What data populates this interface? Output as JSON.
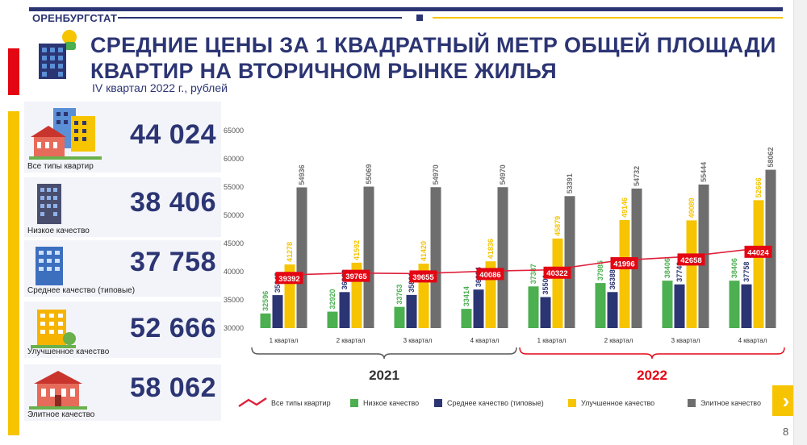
{
  "header": {
    "agency": "ОРЕНБУРГСТАТ",
    "title_line1": "СРЕДНИЕ ЦЕНЫ ЗА 1 КВАДРАТНЫЙ МЕТР ОБЩЕЙ ПЛОЩАДИ",
    "title_line2": "КВАРТИР НА ВТОРИЧНОМ РЫНКЕ ЖИЛЬЯ",
    "subtitle": "IV квартал 2022 г., рублей"
  },
  "summary": [
    {
      "value": "44 024",
      "label": "Все типы квартир",
      "icon": "mixed-buildings-icon"
    },
    {
      "value": "38 406",
      "label": "Низкое качество",
      "icon": "apartment-block-icon"
    },
    {
      "value": "37 758",
      "label": "Среднее качество (типовые)",
      "icon": "blue-apartment-icon"
    },
    {
      "value": "52 666",
      "label": "Улучшенное качество",
      "icon": "yellow-apartment-icon"
    },
    {
      "value": "58 062",
      "label": "Элитное качество",
      "icon": "elite-house-icon"
    }
  ],
  "colors": {
    "low": "#4caf50",
    "mid": "#2c3573",
    "improved": "#f6c400",
    "elite": "#6e6e6e",
    "all": "#e0213c",
    "accent_red": "#e30613",
    "accent_yellow": "#f6c400",
    "navy": "#2c3573"
  },
  "chart_data": {
    "type": "bar",
    "categories": [
      "1 квартал",
      "2 квартал",
      "3 квартал",
      "4 квартал",
      "1 квартал",
      "2 квартал",
      "3 квартал",
      "4 квартал"
    ],
    "groups": [
      {
        "label": "2021",
        "from": 0,
        "to": 3
      },
      {
        "label": "2022",
        "from": 4,
        "to": 7
      }
    ],
    "ylim": [
      30000,
      65000
    ],
    "yticks": [
      30000,
      35000,
      40000,
      45000,
      50000,
      55000,
      60000,
      65000
    ],
    "series": [
      {
        "name": "Низкое качество",
        "key": "low",
        "values": [
          32596,
          32920,
          33763,
          33414,
          37387,
          37985,
          38406,
          38406
        ]
      },
      {
        "name": "Среднее качество (типовые)",
        "key": "mid",
        "values": [
          35845,
          36382,
          35880,
          36834,
          35501,
          36388,
          37748,
          37758
        ]
      },
      {
        "name": "Улучшенное качество",
        "key": "improved",
        "values": [
          41278,
          41592,
          41420,
          41836,
          45879,
          49146,
          49089,
          52666
        ]
      },
      {
        "name": "Элитное качество",
        "key": "elite",
        "values": [
          54936,
          55069,
          54970,
          54970,
          53391,
          54732,
          55444,
          58062
        ]
      }
    ],
    "line": {
      "name": "Все типы квартир",
      "key": "all",
      "values": [
        39392,
        39765,
        39655,
        40086,
        40322,
        41996,
        42658,
        44024
      ]
    },
    "legend": [
      "Все типы квартир",
      "Низкое качество",
      "Среднее качество (типовые)",
      "Улучшенное качество",
      "Элитное качество"
    ],
    "legend_position": "bottom"
  },
  "footer": {
    "next_label": "›",
    "page": "8"
  }
}
